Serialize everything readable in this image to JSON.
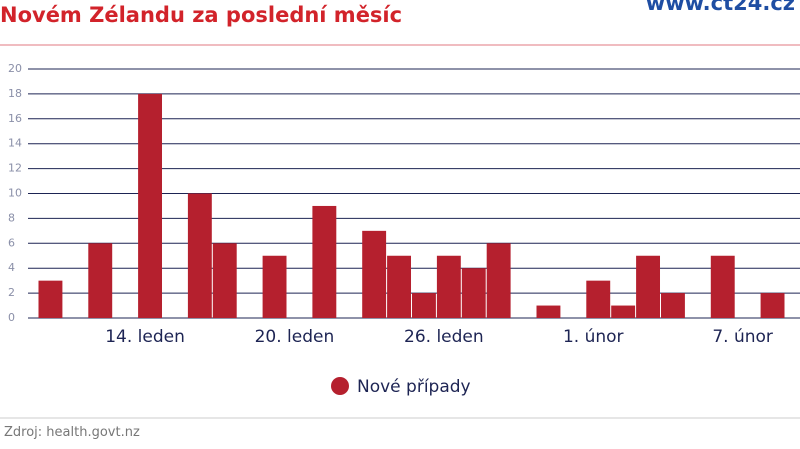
{
  "chart_data": {
    "type": "bar",
    "title": "Novém Zélandu za poslední měsíc",
    "brand": "www.ct24.cz",
    "source": "Zdroj: health.govt.nz",
    "categories": [
      null,
      null,
      null,
      null,
      "14. leden",
      null,
      null,
      null,
      null,
      null,
      "20. leden",
      null,
      null,
      null,
      null,
      null,
      "26. leden",
      null,
      null,
      null,
      null,
      null,
      "1. únor",
      null,
      null,
      null,
      null,
      null,
      "7. únor",
      null
    ],
    "series": [
      {
        "name": "Nové případy",
        "color": "#b5202e",
        "values": [
          3,
          0,
          6,
          0,
          18,
          0,
          10,
          6,
          0,
          5,
          0,
          9,
          0,
          7,
          5,
          2,
          5,
          4,
          6,
          0,
          1,
          0,
          3,
          1,
          5,
          2,
          0,
          5,
          0,
          2
        ]
      }
    ],
    "ylim": [
      0,
      20
    ],
    "yticks": [
      0,
      2,
      4,
      6,
      8,
      10,
      12,
      14,
      16,
      18,
      20
    ],
    "grid": true
  }
}
